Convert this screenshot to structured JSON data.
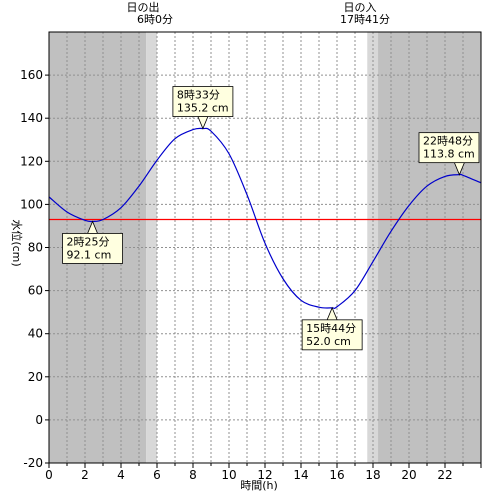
{
  "chart_data": {
    "type": "line",
    "title": "",
    "xlabel": "時間(h)",
    "ylabel": "水位(cm)",
    "xlim": [
      0,
      24
    ],
    "ylim": [
      -20,
      180
    ],
    "x_ticks": [
      0,
      2,
      4,
      6,
      8,
      10,
      12,
      14,
      16,
      18,
      20,
      22
    ],
    "y_ticks": [
      -20,
      0,
      20,
      40,
      60,
      80,
      100,
      120,
      140,
      160
    ],
    "grid": true,
    "series": [
      {
        "color": "#0000cc",
        "x": [
          0,
          1,
          2,
          2.42,
          3,
          4,
          5,
          6,
          7,
          8,
          8.55,
          9,
          10,
          11,
          12,
          13,
          14,
          15,
          15.73,
          16,
          17,
          18,
          19,
          20,
          21,
          22,
          22.8,
          23,
          24
        ],
        "values": [
          103.5,
          96.5,
          92.6,
          92.1,
          93.0,
          98.5,
          108.5,
          120.5,
          130.5,
          134.7,
          135.2,
          134.0,
          123.5,
          104.5,
          82.0,
          65.5,
          55.5,
          52.3,
          52.0,
          52.5,
          60.0,
          73.5,
          87.5,
          99.5,
          108.5,
          113.0,
          113.8,
          113.5,
          110.0
        ]
      }
    ],
    "reference_line": {
      "value": 93,
      "color": "#ff0000"
    },
    "sunrise": {
      "label": "日の出",
      "time": "6時0分",
      "hour": 6.0
    },
    "sunset": {
      "label": "日の入",
      "time": "17時41分",
      "hour": 17.68
    },
    "extremes": [
      {
        "hour": 2.42,
        "value": 92.1,
        "time_label": "2時25分",
        "value_label": "92.1 cm"
      },
      {
        "hour": 8.55,
        "value": 135.2,
        "time_label": "8時33分",
        "value_label": "135.2 cm"
      },
      {
        "hour": 15.73,
        "value": 52.0,
        "time_label": "15時44分",
        "value_label": "52.0 cm"
      },
      {
        "hour": 22.8,
        "value": 113.8,
        "time_label": "22時48分",
        "value_label": "113.8 cm"
      }
    ],
    "colors": {
      "night": "#c0c0c0",
      "twilight": "#d8d8d8",
      "day": "#ffffff",
      "callout_bg": "#ffffe0",
      "grid": "#909090"
    }
  }
}
